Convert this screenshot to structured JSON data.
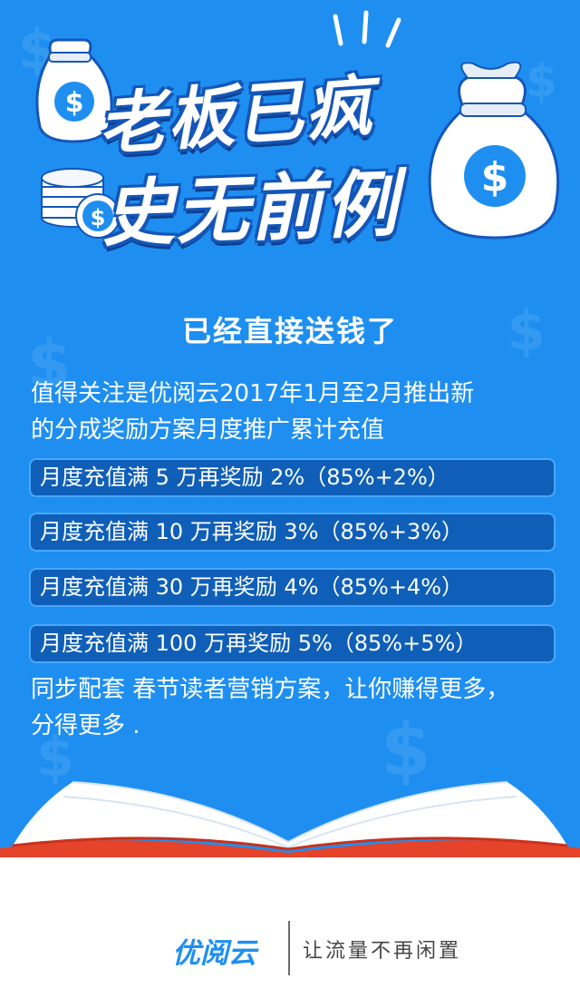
{
  "headline": {
    "line1": "老板已疯",
    "line2": "史无前例"
  },
  "subtitle": "已经直接送钱了",
  "intro": {
    "line1": "值得关注是优阅云2017年1月至2月推出新",
    "line2": "的分成奖励方案月度推广累计充值"
  },
  "rewards": [
    "月度充值满 5 万再奖励 2%（85%+2%）",
    "月度充值满 10 万再奖励 3%（85%+3%）",
    "月度充值满 30 万再奖励 4%（85%+4%）",
    "月度充值满 100 万再奖励 5%（85%+5%）"
  ],
  "outro": {
    "line1": "同步配套 春节读者营销方案，让你赚得更多，",
    "line2": "分得更多 ."
  },
  "footer": {
    "brand": "优阅云",
    "slogan": "让流量不再闲置"
  },
  "icons": {
    "money_bag_left": "money-bag-icon",
    "coin_stack": "coin-stack-icon",
    "money_bag_right": "money-bag-icon",
    "book": "open-book-icon"
  },
  "colors": {
    "background_blue": "#1e8ff0",
    "box_fill": "#0f5fb8",
    "book_red": "#e5432a"
  }
}
